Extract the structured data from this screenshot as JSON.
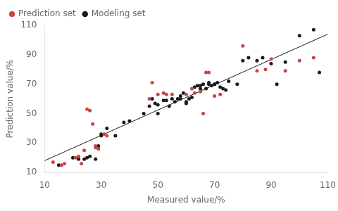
{
  "chart_data": {
    "type": "scatter",
    "xlabel": "Measured value/%",
    "ylabel": "Prediction value/%",
    "xlim": [
      10,
      110
    ],
    "ylim": [
      10,
      110
    ],
    "xticks": [
      10,
      30,
      50,
      70,
      90,
      110
    ],
    "yticks": [
      10,
      30,
      50,
      70,
      90,
      110
    ],
    "grid": false,
    "legend": "upper left",
    "series": [
      {
        "type": "line",
        "color": "#1a1a1a",
        "x": [
          10,
          110
        ],
        "values": [
          18,
          104
        ]
      },
      {
        "name": "Modeling set",
        "type": "scatter",
        "color": "#1a1a1a",
        "x": [
          15,
          20,
          22,
          24,
          25,
          26,
          28,
          29,
          30,
          30,
          32,
          35,
          38,
          40,
          45,
          47,
          48,
          49,
          50,
          50,
          52,
          53,
          54,
          55,
          56,
          57,
          58,
          58,
          59,
          60,
          60,
          61,
          62,
          63,
          64,
          65,
          65,
          66,
          67,
          68,
          68,
          69,
          70,
          70,
          71,
          72,
          73,
          74,
          75,
          78,
          80,
          82,
          85,
          87,
          90,
          92,
          95,
          100,
          105,
          107
        ],
        "values": [
          15,
          20,
          19,
          19,
          20,
          21,
          19,
          28,
          36,
          35,
          40,
          35,
          44,
          45,
          50,
          55,
          60,
          57,
          56,
          50,
          59,
          59,
          55,
          60,
          58,
          60,
          62,
          60,
          64,
          58,
          57,
          60,
          61,
          68,
          69,
          67,
          69,
          70,
          67,
          70,
          71,
          69,
          70,
          70,
          71,
          68,
          67,
          66,
          72,
          70,
          86,
          88,
          86,
          88,
          84,
          70,
          85,
          103,
          107,
          78
        ]
      },
      {
        "name": "Prediction set",
        "type": "scatter",
        "color": "#cc4444",
        "x": [
          13,
          16,
          17,
          21,
          22,
          23,
          24,
          25,
          26,
          27,
          28,
          28,
          29,
          31,
          32,
          47,
          48,
          50,
          52,
          53,
          55,
          60,
          62,
          63,
          65,
          66,
          67,
          68,
          70,
          72,
          80,
          85,
          88,
          90,
          95,
          100,
          105
        ],
        "values": [
          17,
          15,
          16,
          20,
          21,
          16,
          25,
          53,
          52,
          43,
          28,
          27,
          26,
          36,
          35,
          60,
          71,
          63,
          64,
          63,
          63,
          63,
          67,
          64,
          65,
          50,
          78,
          78,
          62,
          63,
          96,
          79,
          80,
          87,
          79,
          86,
          88
        ]
      }
    ]
  }
}
